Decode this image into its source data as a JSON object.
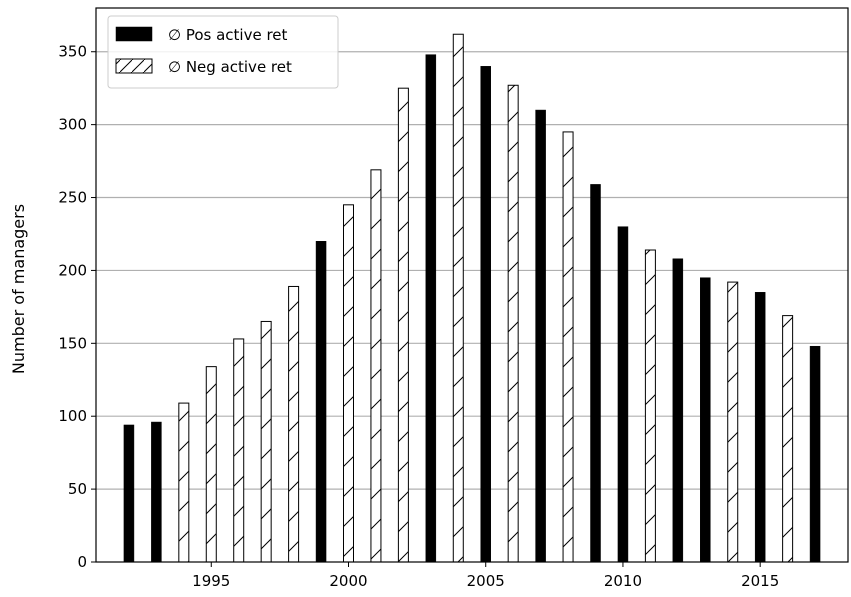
{
  "chart_data": {
    "type": "bar",
    "title": "",
    "xlabel": "",
    "ylabel": "Number of managers",
    "xlim": [
      1990.8,
      2018.2
    ],
    "ylim": [
      0,
      380
    ],
    "xticks": [
      1995,
      2000,
      2005,
      2010,
      2015
    ],
    "yticks": [
      0,
      50,
      100,
      150,
      200,
      250,
      300,
      350
    ],
    "grid": "horizontal",
    "legend_position": "top-left",
    "series": [
      {
        "name": "∅ Pos active ret",
        "style": "solid",
        "color": "#000000",
        "points": [
          {
            "x": 1992,
            "y": 94
          },
          {
            "x": 1993,
            "y": 96
          },
          {
            "x": 1999,
            "y": 220
          },
          {
            "x": 2003,
            "y": 348
          },
          {
            "x": 2005,
            "y": 340
          },
          {
            "x": 2007,
            "y": 310
          },
          {
            "x": 2009,
            "y": 259
          },
          {
            "x": 2010,
            "y": 230
          },
          {
            "x": 2012,
            "y": 208
          },
          {
            "x": 2013,
            "y": 195
          },
          {
            "x": 2015,
            "y": 185
          },
          {
            "x": 2017,
            "y": 148
          }
        ]
      },
      {
        "name": "∅ Neg active ret",
        "style": "hatched",
        "color": "#ffffff",
        "points": [
          {
            "x": 1994,
            "y": 109
          },
          {
            "x": 1995,
            "y": 134
          },
          {
            "x": 1996,
            "y": 153
          },
          {
            "x": 1997,
            "y": 165
          },
          {
            "x": 1998,
            "y": 189
          },
          {
            "x": 2000,
            "y": 245
          },
          {
            "x": 2001,
            "y": 269
          },
          {
            "x": 2002,
            "y": 325
          },
          {
            "x": 2004,
            "y": 362
          },
          {
            "x": 2006,
            "y": 327
          },
          {
            "x": 2008,
            "y": 295
          },
          {
            "x": 2011,
            "y": 214
          },
          {
            "x": 2014,
            "y": 192
          },
          {
            "x": 2016,
            "y": 169
          }
        ]
      }
    ]
  }
}
